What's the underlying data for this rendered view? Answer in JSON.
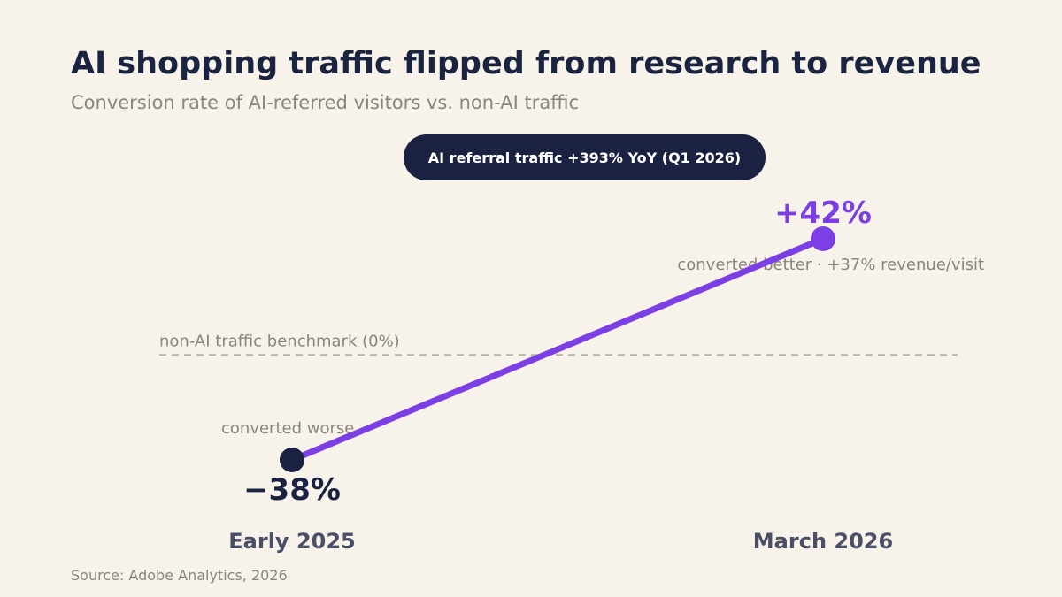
{
  "title": "AI shopping traffic flipped from research to revenue",
  "subtitle": "Conversion rate of AI-referred visitors vs. non-AI traffic",
  "callout": "AI referral traffic +393% YoY (Q1 2026)",
  "source": "Source: Adobe Analytics, 2026",
  "colors": {
    "background": "#f7f3ea",
    "navy": "#1b2140",
    "purple": "#7b3fe4",
    "muted": "#8b857c",
    "axis_label": "#4a4f66",
    "benchmark": "#b5b0a6"
  },
  "chart_data": {
    "type": "line",
    "categories": [
      "Early 2025",
      "March 2026"
    ],
    "values": [
      -38,
      42
    ],
    "value_labels": [
      "−38%",
      "+42%"
    ],
    "point_notes": [
      "converted worse",
      "converted better · +37% revenue/visit"
    ],
    "benchmark": {
      "value": 0,
      "label": "non-AI traffic benchmark (0%)"
    },
    "ylim": [
      -38,
      42
    ],
    "grid": false
  }
}
